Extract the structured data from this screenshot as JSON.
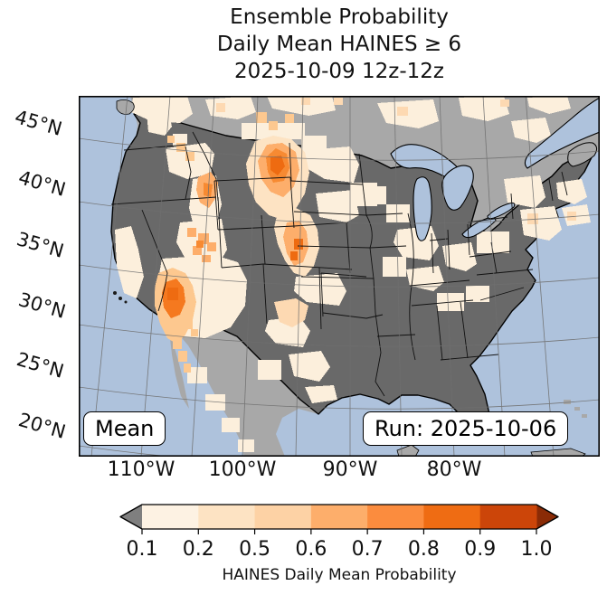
{
  "title": {
    "line1": "Ensemble Probability",
    "line2": "Daily Mean HAINES ≥ 6",
    "line3": "2025-10-09 12z-12z"
  },
  "map": {
    "overlays": {
      "member_label": "Mean",
      "run_label": "Run: 2025-10-06"
    },
    "colors": {
      "ocean": "#aec2dc",
      "outside_land": "#a8a8a8",
      "masked_conus": "#696969",
      "coast_border": "#000000",
      "graticule": "#6f6f6f",
      "prob_low": "#fcefdc",
      "prob_mid": "#fdae6b",
      "prob_high": "#ee6b11"
    }
  },
  "axes": {
    "lat_ticks": [
      "45°N",
      "40°N",
      "35°N",
      "30°N",
      "25°N",
      "20°N"
    ],
    "lon_ticks": [
      "110°W",
      "100°W",
      "90°W",
      "80°W"
    ]
  },
  "colorbar": {
    "label": "HAINES Daily Mean Probability",
    "tick_labels": [
      "0.1",
      "0.2",
      "0.5",
      "0.6",
      "0.7",
      "0.8",
      "0.9",
      "1.0"
    ],
    "segment_colors": [
      "#fdf2e3",
      "#fde3c3",
      "#fdd2a5",
      "#fdae6b",
      "#fb8c3e",
      "#ef6c13",
      "#cc4509"
    ],
    "under_arrow_color": "#7f7f7f",
    "over_arrow_color": "#8a2b06"
  }
}
